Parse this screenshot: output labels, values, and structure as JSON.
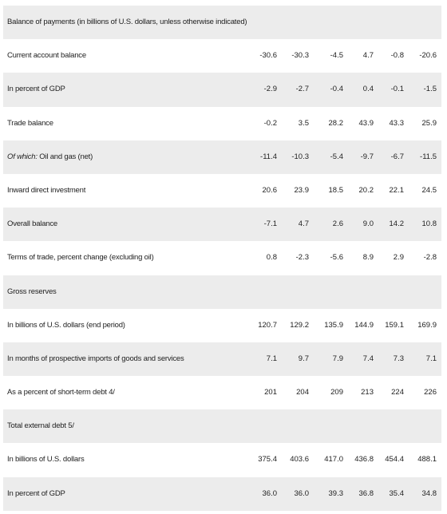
{
  "table": {
    "rows": [
      {
        "label": "Balance of payments (in billions of U.S. dollars, unless otherwise indicated)"
      },
      {
        "label": "Current account balance",
        "values": [
          "-30.6",
          "-30.3",
          "-4.5",
          "4.7",
          "-0.8",
          "-20.6"
        ]
      },
      {
        "label": "In percent of GDP",
        "values": [
          "-2.9",
          "-2.7",
          "-0.4",
          "0.4",
          "-0.1",
          "-1.5"
        ]
      },
      {
        "label": "Trade balance",
        "values": [
          "-0.2",
          "3.5",
          "28.2",
          "43.9",
          "43.3",
          "25.9"
        ]
      },
      {
        "label_emphasis": "Of which:",
        "label": "Oil and gas (net)",
        "values": [
          "-11.4",
          "-10.3",
          "-5.4",
          "-9.7",
          "-6.7",
          "-11.5"
        ]
      },
      {
        "label": "Inward direct investment",
        "values": [
          "20.6",
          "23.9",
          "18.5",
          "20.2",
          "22.1",
          "24.5"
        ]
      },
      {
        "label": "Overall balance",
        "values": [
          "-7.1",
          "4.7",
          "2.6",
          "9.0",
          "14.2",
          "10.8"
        ]
      },
      {
        "label": "Terms of trade, percent change (excluding oil)",
        "values": [
          "0.8",
          "-2.3",
          "-5.6",
          "8.9",
          "2.9",
          "-2.8"
        ]
      },
      {
        "label": "Gross reserves"
      },
      {
        "label": "In billions of U.S. dollars (end period)",
        "values": [
          "120.7",
          "129.2",
          "135.9",
          "144.9",
          "159.1",
          "169.9"
        ]
      },
      {
        "label": "In months of prospective imports of goods and services",
        "values": [
          "7.1",
          "9.7",
          "7.9",
          "7.4",
          "7.3",
          "7.1"
        ]
      },
      {
        "label": "As a percent of short-term debt 4/",
        "values": [
          "201",
          "204",
          "209",
          "213",
          "224",
          "226"
        ]
      },
      {
        "label": "Total external debt 5/"
      },
      {
        "label": "In billions of U.S. dollars",
        "values": [
          "375.4",
          "403.6",
          "417.0",
          "436.8",
          "454.4",
          "488.1"
        ]
      },
      {
        "label": "In percent of GDP",
        "values": [
          "36.0",
          "36.0",
          "39.3",
          "36.8",
          "35.4",
          "34.8"
        ]
      }
    ]
  }
}
